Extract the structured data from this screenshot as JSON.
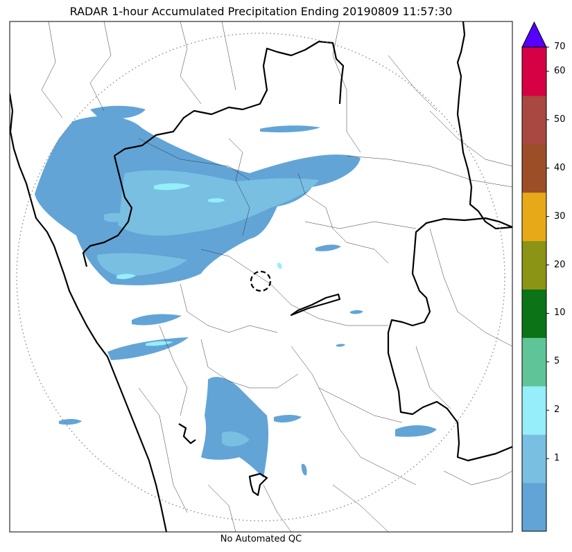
{
  "title": "RADAR 1-hour Accumulated Precipitation Ending 20190809 11:57:30",
  "caption": "No Automated QC",
  "colorbar": {
    "levels": [
      {
        "label": "",
        "color": "#62a4d6"
      },
      {
        "label": "1",
        "color": "#78bfe2"
      },
      {
        "label": "2",
        "color": "#95eefa"
      },
      {
        "label": "5",
        "color": "#5fc598"
      },
      {
        "label": "10",
        "color": "#0c7416"
      },
      {
        "label": "20",
        "color": "#8b9414"
      },
      {
        "label": "30",
        "color": "#e8a918"
      },
      {
        "label": "40",
        "color": "#9c4f27"
      },
      {
        "label": "50",
        "color": "#a84841"
      },
      {
        "label": "60",
        "color": "#d60045"
      },
      {
        "label": "70",
        "color": "#5500ff"
      }
    ],
    "extend_color": "#5500ff"
  }
}
